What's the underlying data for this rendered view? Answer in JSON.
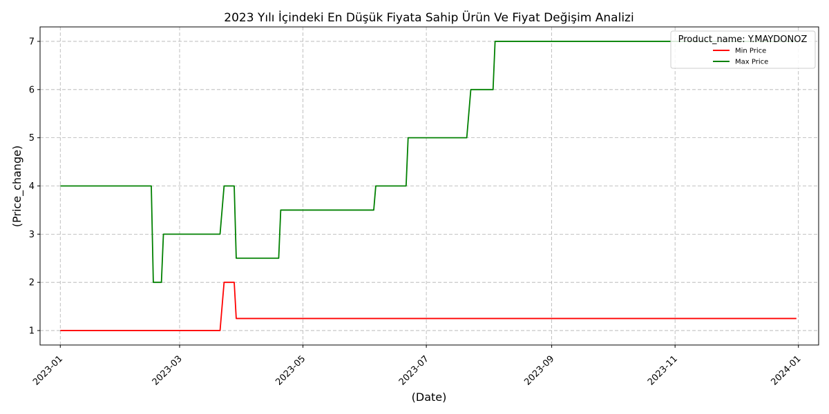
{
  "chart_data": {
    "type": "line",
    "title": "2023 Yılı İçindeki En Düşük Fiyata Sahip Ürün Ve Fiyat Değişim Analizi",
    "xlabel": "(Date)",
    "ylabel": "(Price_change)",
    "xlim": [
      "2022-12-22",
      "2024-01-11"
    ],
    "ylim": [
      0.7,
      7.3
    ],
    "x_ticks": [
      "2023-01",
      "2023-03",
      "2023-05",
      "2023-07",
      "2023-09",
      "2023-11",
      "2024-01"
    ],
    "y_ticks": [
      1,
      2,
      3,
      4,
      5,
      6,
      7
    ],
    "grid": true,
    "legend": {
      "title": "Product_name: Y.MAYDONOZ",
      "placement": "top-right"
    },
    "series": [
      {
        "name": "Min Price",
        "color": "#ff0000",
        "points": [
          [
            "2023-01-01",
            1
          ],
          [
            "2023-03-21",
            1
          ],
          [
            "2023-03-23",
            2
          ],
          [
            "2023-03-28",
            2
          ],
          [
            "2023-03-29",
            1.25
          ],
          [
            "2023-12-31",
            1.25
          ]
        ]
      },
      {
        "name": "Max Price",
        "color": "#008000",
        "points": [
          [
            "2023-01-01",
            4
          ],
          [
            "2023-02-15",
            4
          ],
          [
            "2023-02-16",
            2
          ],
          [
            "2023-02-20",
            2
          ],
          [
            "2023-02-21",
            3
          ],
          [
            "2023-03-21",
            3
          ],
          [
            "2023-03-23",
            4
          ],
          [
            "2023-03-28",
            4
          ],
          [
            "2023-03-29",
            2.5
          ],
          [
            "2023-04-19",
            2.5
          ],
          [
            "2023-04-20",
            3.5
          ],
          [
            "2023-06-05",
            3.5
          ],
          [
            "2023-06-06",
            4
          ],
          [
            "2023-06-21",
            4
          ],
          [
            "2023-06-22",
            5
          ],
          [
            "2023-07-21",
            5
          ],
          [
            "2023-07-23",
            6
          ],
          [
            "2023-08-03",
            6
          ],
          [
            "2023-08-04",
            7
          ],
          [
            "2023-12-31",
            7
          ]
        ]
      }
    ]
  }
}
